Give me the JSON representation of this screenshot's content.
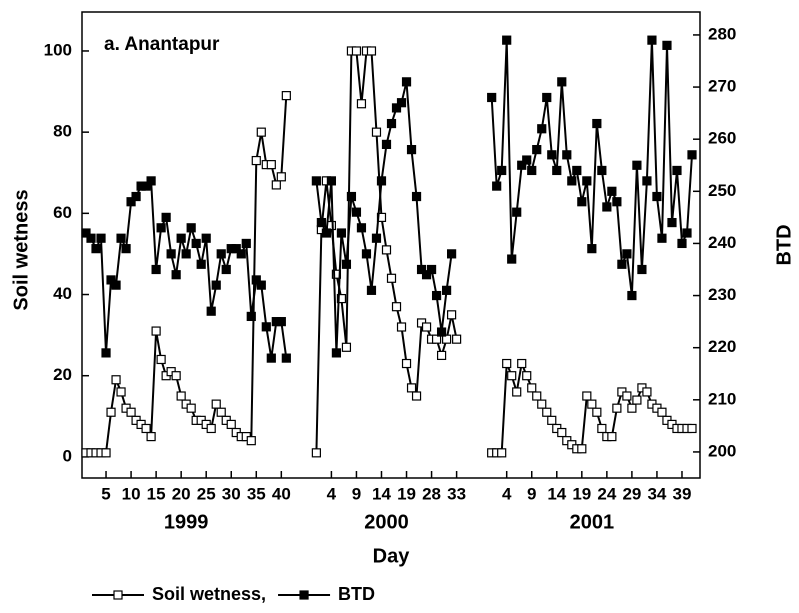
{
  "chart_data": {
    "type": "line",
    "annotation": "a. Anantapur",
    "xlabel": "Day",
    "ylabel": "Soil wetness",
    "y2label": "BTD",
    "x_groups": [
      "1999",
      "2000",
      "2001"
    ],
    "categories": [
      null,
      null,
      null,
      null,
      "5",
      null,
      null,
      null,
      null,
      "10",
      null,
      null,
      null,
      null,
      "15",
      null,
      null,
      null,
      null,
      "20",
      null,
      null,
      null,
      null,
      "25",
      null,
      null,
      null,
      null,
      "30",
      null,
      null,
      null,
      null,
      "35",
      null,
      null,
      null,
      null,
      "40",
      null,
      null,
      null,
      null,
      null,
      null,
      null,
      null,
      null,
      "4",
      null,
      null,
      null,
      null,
      "9",
      null,
      null,
      null,
      null,
      "14",
      null,
      null,
      null,
      null,
      "19",
      null,
      null,
      null,
      null,
      "28",
      null,
      null,
      null,
      null,
      "33",
      null,
      null,
      null,
      null,
      null,
      null,
      null,
      null,
      null,
      "4",
      null,
      null,
      null,
      null,
      "9",
      null,
      null,
      null,
      null,
      "14",
      null,
      null,
      null,
      null,
      "19",
      null,
      null,
      null,
      null,
      "24",
      null,
      null,
      null,
      null,
      "29",
      null,
      null,
      null,
      null,
      "34",
      null,
      null,
      null,
      null,
      "39",
      null,
      null
    ],
    "series": [
      {
        "name": "Soil wetness,",
        "color": "#000000",
        "marker": "open-square",
        "axis": "y",
        "values": [
          1,
          1,
          1,
          1,
          1,
          11,
          19,
          16,
          12,
          11,
          9,
          8,
          7,
          5,
          31,
          24,
          20,
          21,
          20,
          15,
          13,
          12,
          9,
          9,
          8,
          7,
          13,
          11,
          9,
          8,
          6,
          5,
          5,
          4,
          73,
          80,
          72,
          72,
          67,
          69,
          89,
          null,
          null,
          null,
          null,
          null,
          1,
          56,
          68,
          57,
          45,
          39,
          27,
          100,
          100,
          87,
          100,
          100,
          80,
          59,
          51,
          44,
          37,
          32,
          23,
          17,
          15,
          33,
          32,
          29,
          29,
          25,
          29,
          35,
          29,
          null,
          null,
          null,
          null,
          null,
          null,
          1,
          1,
          1,
          23,
          20,
          16,
          23,
          20,
          17,
          15,
          13,
          11,
          9,
          7,
          6,
          4,
          3,
          2,
          2,
          15,
          13,
          11,
          7,
          5,
          5,
          12,
          16,
          15,
          12,
          14,
          17,
          16,
          13,
          12,
          11,
          9,
          8,
          7,
          7,
          7,
          7
        ]
      },
      {
        "name": "BTD",
        "color": "#000000",
        "marker": "filled-square",
        "axis": "y2",
        "values": [
          242,
          241,
          239,
          241,
          219,
          233,
          232,
          241,
          239,
          248,
          249,
          251,
          251,
          252,
          235,
          243,
          245,
          238,
          234,
          241,
          238,
          243,
          240,
          236,
          241,
          227,
          232,
          238,
          235,
          239,
          239,
          238,
          240,
          226,
          233,
          232,
          224,
          218,
          225,
          225,
          218,
          null,
          null,
          null,
          null,
          null,
          252,
          244,
          242,
          252,
          219,
          242,
          236,
          249,
          246,
          243,
          238,
          231,
          241,
          252,
          259,
          263,
          266,
          267,
          271,
          258,
          249,
          235,
          234,
          235,
          230,
          223,
          231,
          238,
          null,
          null,
          null,
          null,
          null,
          null,
          null,
          268,
          251,
          254,
          279,
          237,
          246,
          255,
          256,
          254,
          258,
          262,
          268,
          257,
          254,
          271,
          257,
          252,
          254,
          248,
          252,
          239,
          263,
          254,
          247,
          250,
          248,
          236,
          238,
          230,
          255,
          235,
          252,
          279,
          249,
          241,
          278,
          244,
          254,
          240,
          242,
          257
        ]
      }
    ],
    "ylim": [
      -5.2,
      109.6
    ],
    "yticks": [
      0,
      20,
      40,
      60,
      80,
      100
    ],
    "y2lim": [
      195.0,
      284.4
    ],
    "y2ticks": [
      200,
      210,
      220,
      230,
      240,
      250,
      260,
      270,
      280
    ],
    "grid": false,
    "legend": "bottom-left"
  }
}
